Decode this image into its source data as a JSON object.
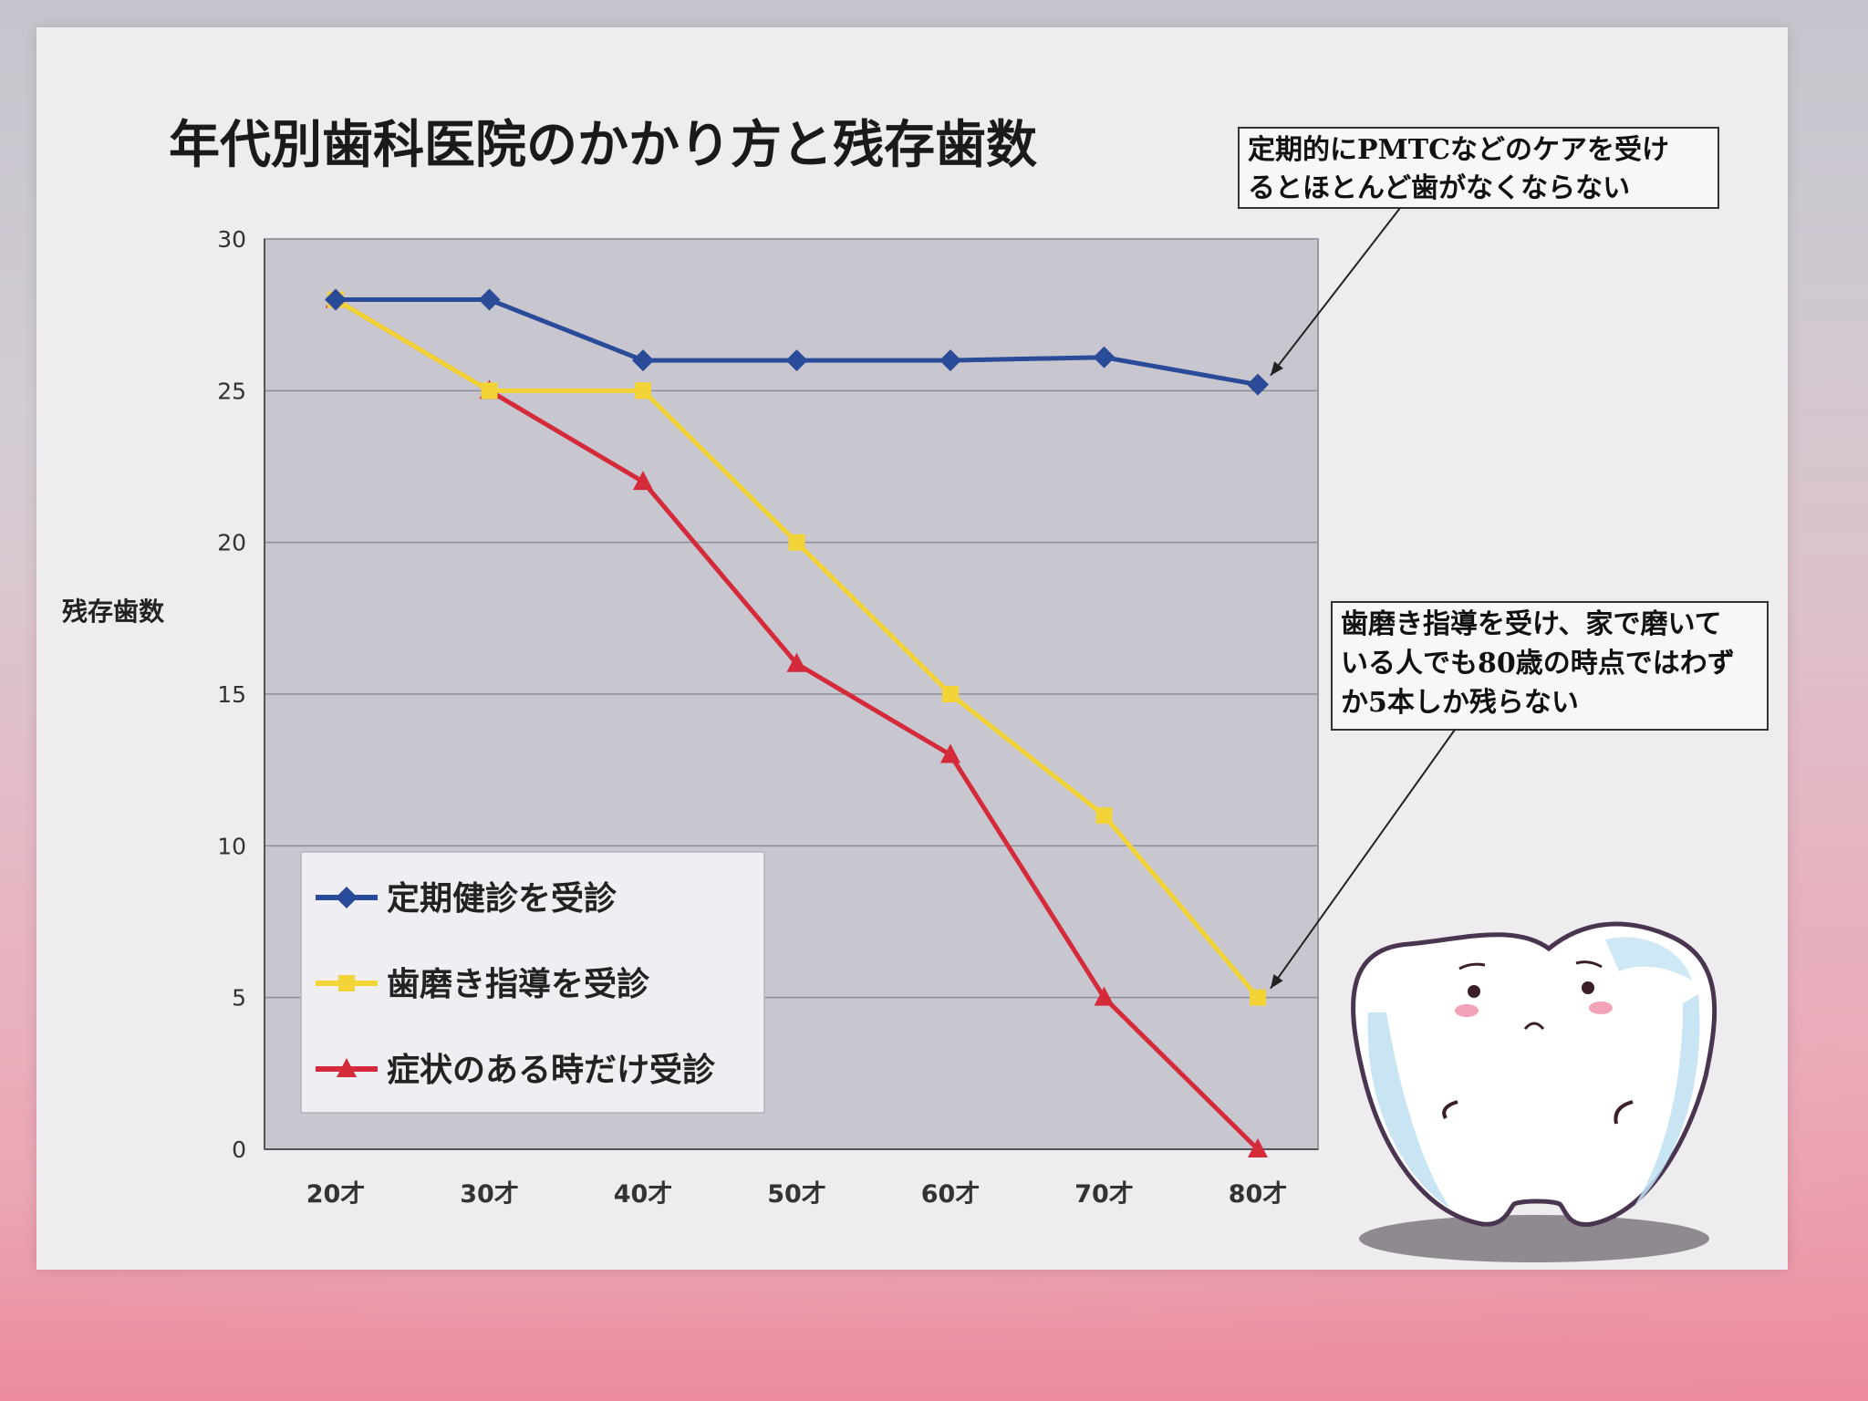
{
  "chart_data": {
    "type": "line",
    "title": "年代別歯科医院のかかり方と残存歯数",
    "ylabel": "残存歯数",
    "xlabel": "",
    "ylim": [
      0,
      30
    ],
    "yticks": [
      0,
      5,
      10,
      15,
      20,
      25,
      30
    ],
    "categories": [
      "20才",
      "30才",
      "40才",
      "50才",
      "60才",
      "70才",
      "80才"
    ],
    "grid": true,
    "legend_position": "bottom-left",
    "series": [
      {
        "name": "定期健診を受診",
        "color": "#2a4b97",
        "marker": "diamond",
        "values": [
          28,
          28,
          26,
          26,
          26,
          26.1,
          25.2
        ]
      },
      {
        "name": "歯磨き指導を受診",
        "color": "#f2d437",
        "marker": "square",
        "values": [
          28,
          25,
          25,
          20,
          15,
          11,
          5
        ]
      },
      {
        "name": "症状のある時だけ受診",
        "color": "#d42a3a",
        "marker": "triangle",
        "values": [
          28,
          25,
          22,
          16,
          13,
          5,
          0
        ]
      }
    ],
    "annotations": [
      {
        "id": "pmtc",
        "lines": [
          "定期的にPMTCなどのケアを受け",
          "るとほとんど歯がなくならない"
        ],
        "series_index": 0,
        "point_index": 6
      },
      {
        "id": "brushing",
        "lines": [
          "歯磨き指導を受け、家で磨いて",
          "いる人でも80歳の時点ではわず",
          "か5本しか残らない"
        ],
        "series_index": 1,
        "point_index": 6
      }
    ]
  },
  "colors": {
    "plot_background": "#c8c6cf",
    "grid_line": "#8e8c96",
    "paper": "#eeecef",
    "tooth_outline": "#4a3550",
    "tooth_fill": "#ffffff",
    "tooth_shade": "#bfe0f2"
  },
  "illustration": {
    "name": "tooth-mascot",
    "expression": "worried"
  }
}
